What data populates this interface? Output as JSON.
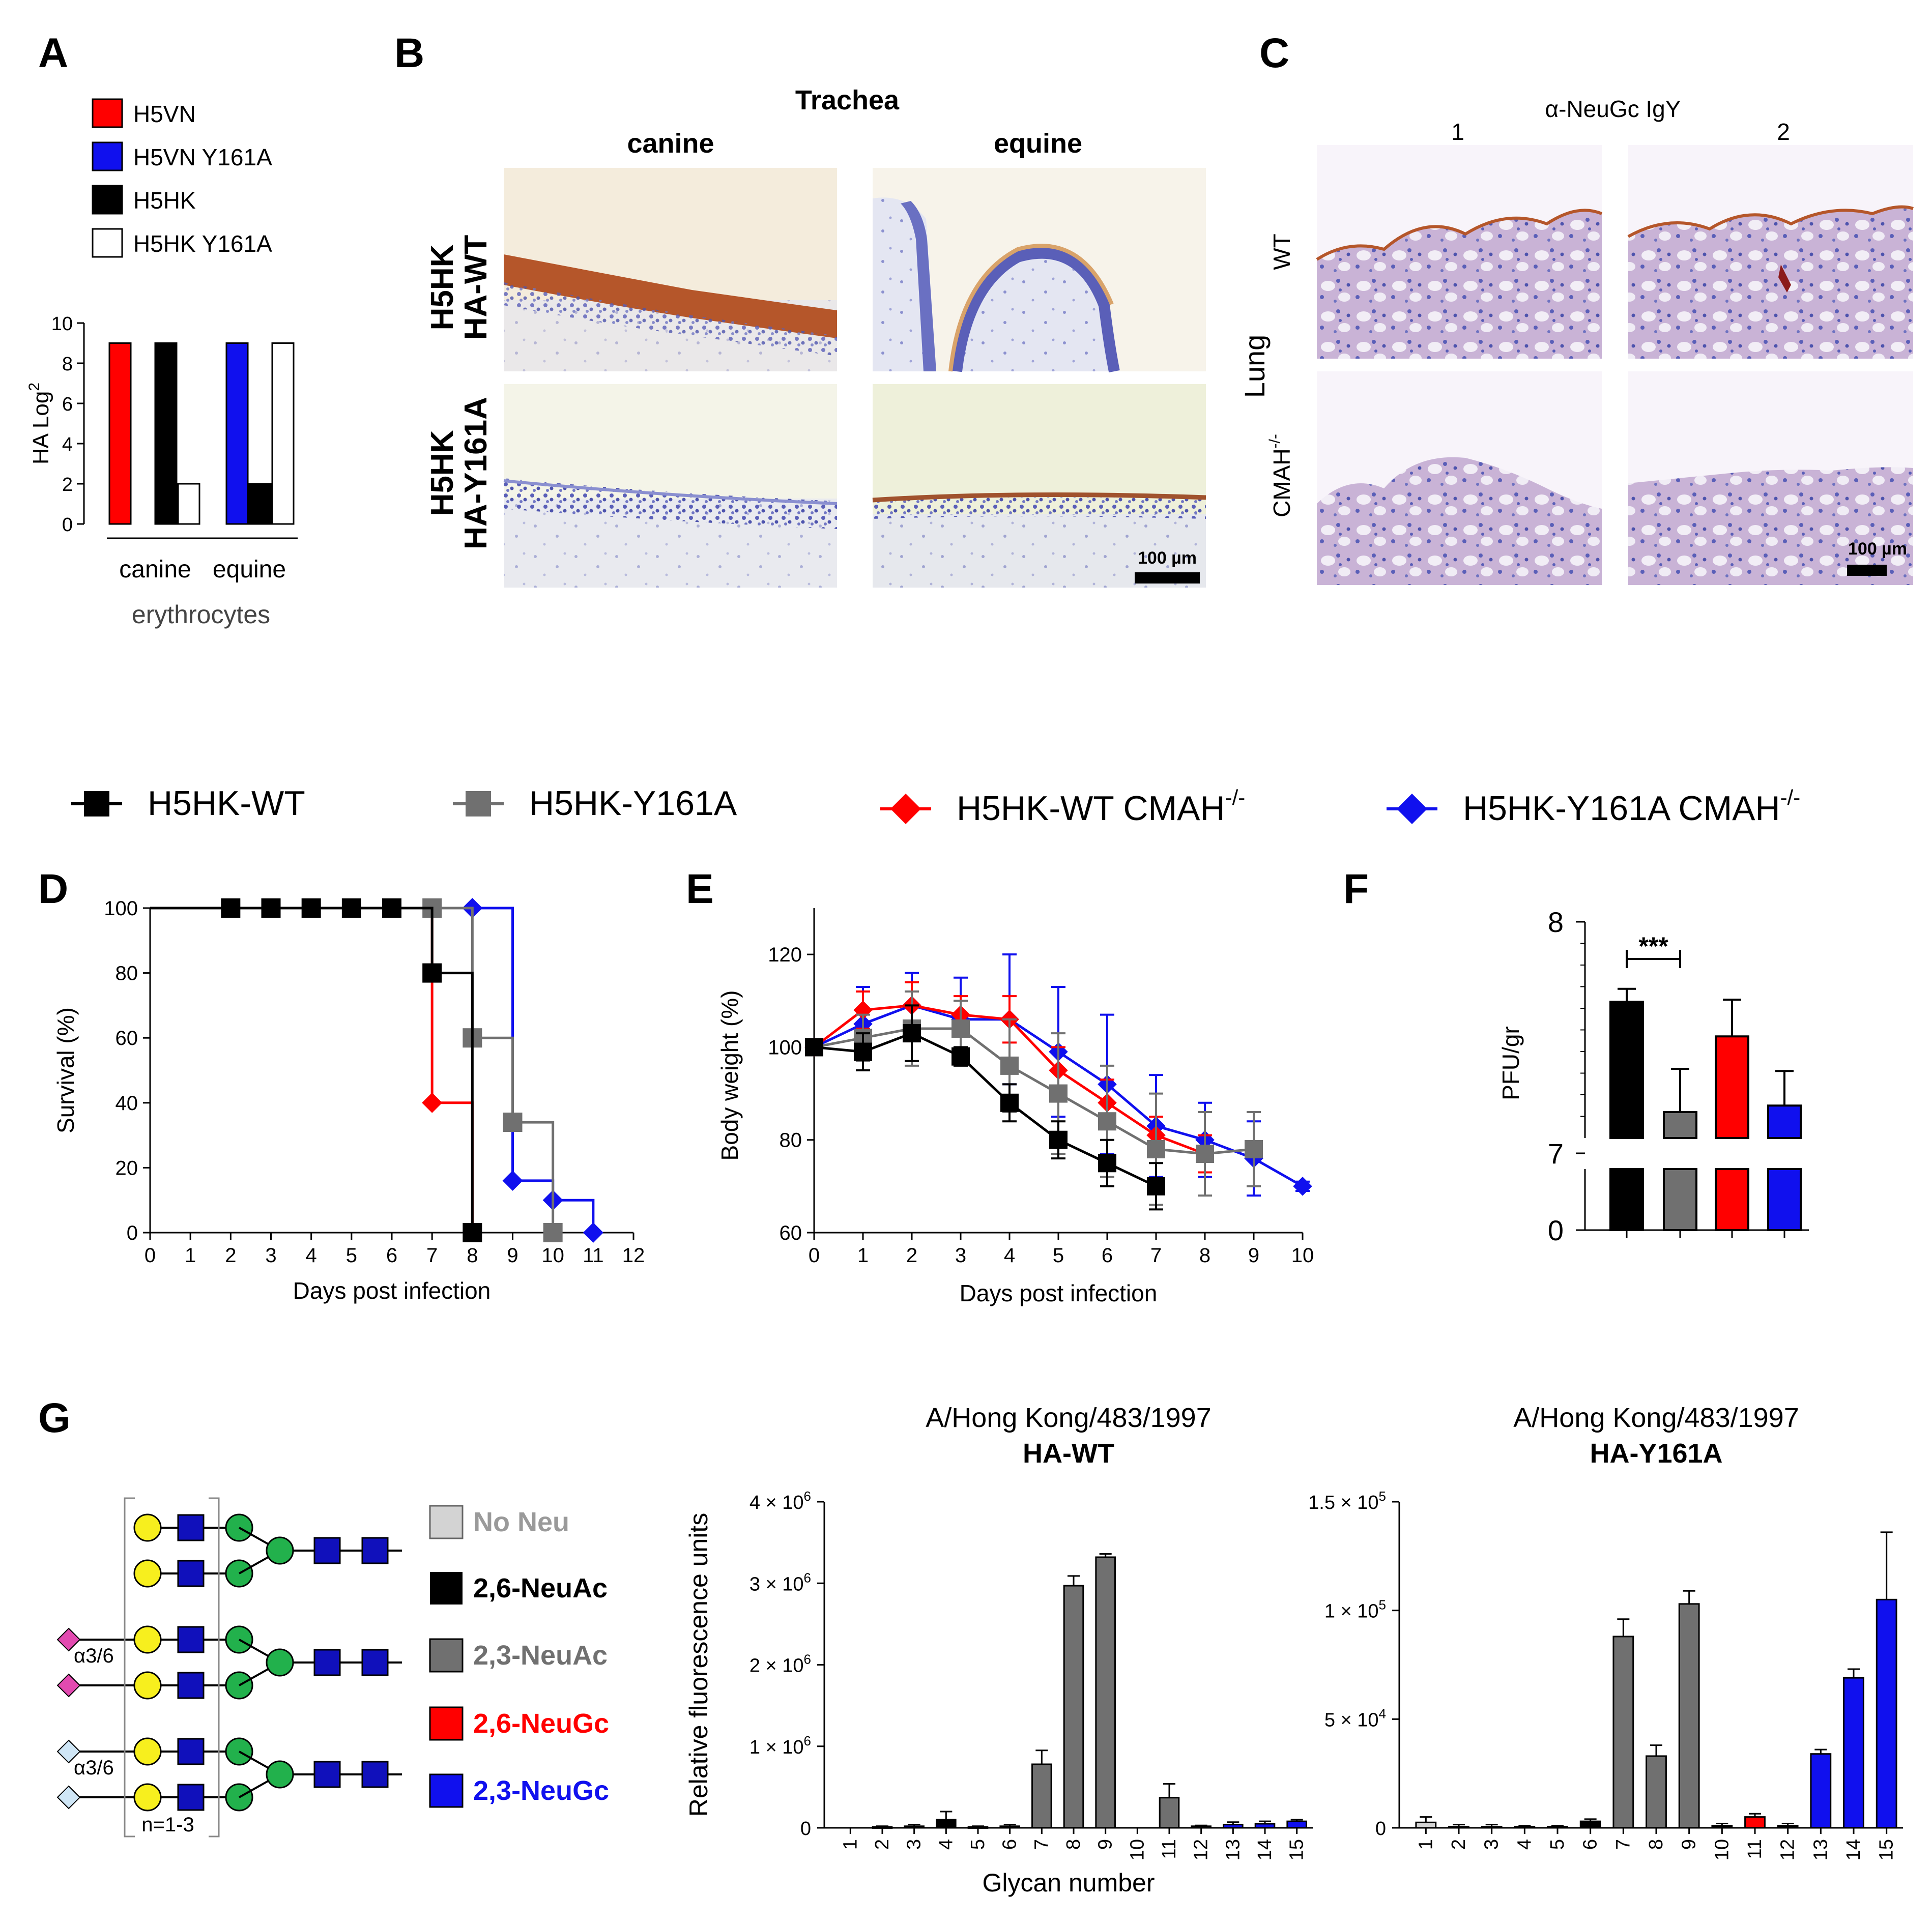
{
  "panel_letters": {
    "A": "A",
    "B": "B",
    "C": "C",
    "D": "D",
    "E": "E",
    "F": "F",
    "G": "G"
  },
  "colors": {
    "red": "#ff0000",
    "blue": "#1010ee",
    "black": "#000000",
    "gray": "#707070",
    "lightgray": "#d3d3d3",
    "histo_blue": "#7a7fc8",
    "histo_brown": "#a0522d"
  },
  "panel_a": {
    "legend": [
      "H5VN",
      "H5VN Y161A",
      "H5HK",
      "H5HK Y161A"
    ],
    "xlabel": "erythrocytes",
    "groups": [
      "canine",
      "equine"
    ]
  },
  "panel_b": {
    "title": "Trachea",
    "columns": [
      "canine",
      "equine"
    ],
    "rows": [
      [
        "H5HK",
        "HA-WT"
      ],
      [
        "H5HK",
        "HA-Y161A"
      ]
    ],
    "scalebar": "100 µm"
  },
  "panel_c": {
    "title": "α-NeuGc IgY",
    "columns": [
      "1",
      "2"
    ],
    "rows": [
      "WT",
      "CMAH"
    ],
    "row_sup": "-/-",
    "organ": "Lung",
    "scalebar": "100 µm"
  },
  "legend_de": [
    {
      "label": "H5HK-WT",
      "sup": "",
      "marker": "square",
      "color": "#000000"
    },
    {
      "label": "H5HK-Y161A",
      "sup": "",
      "marker": "square",
      "color": "#707070"
    },
    {
      "label": "H5HK-WT CMAH",
      "sup": "-/-",
      "marker": "diamond",
      "color": "#ff0000"
    },
    {
      "label": "H5HK-Y161A CMAH",
      "sup": "-/-",
      "marker": "diamond",
      "color": "#1010ee"
    }
  ],
  "panel_g": {
    "legend": [
      "No Neu",
      "2,6-NeuAc",
      "2,3-NeuAc",
      "2,6-NeuGc",
      "2,3-NeuGc"
    ],
    "linkage_labels": [
      "α3/6",
      "α3/6"
    ],
    "repeat_label": "n=1-3"
  },
  "chart_data": [
    {
      "id": "A",
      "type": "bar",
      "title": "",
      "ylabel": "HA Log",
      "ylabel_sup": "2",
      "ylim": [
        0,
        10
      ],
      "yticks": [
        0,
        2,
        4,
        6,
        8,
        10
      ],
      "categories": [
        "canine",
        "equine"
      ],
      "series": [
        {
          "name": "H5VN",
          "color": "#ff0000",
          "values": [
            9,
            null
          ]
        },
        {
          "name": "H5HK",
          "color": "#000000",
          "values": [
            9,
            2
          ]
        },
        {
          "name": "H5HK Y161A",
          "color": "#ffffff",
          "values": [
            2,
            9
          ]
        },
        {
          "name": "H5VN Y161A",
          "color": "#1010ee",
          "values": [
            null,
            9
          ]
        }
      ]
    },
    {
      "id": "D",
      "type": "line",
      "subtype": "survival-step",
      "xlabel": "Days post infection",
      "ylabel": "Survival (%)",
      "xlim": [
        0,
        12
      ],
      "ylim": [
        0,
        100
      ],
      "xticks": [
        0,
        1,
        2,
        3,
        4,
        5,
        6,
        7,
        8,
        9,
        10,
        11,
        12
      ],
      "yticks": [
        0,
        20,
        40,
        60,
        80,
        100
      ],
      "series": [
        {
          "name": "H5HK-WT",
          "color": "#000000",
          "marker": "square",
          "x": [
            0,
            7,
            8
          ],
          "y": [
            100,
            80,
            0
          ],
          "marker_x": [
            2,
            3,
            4,
            5,
            6,
            7,
            8
          ],
          "marker_y": [
            100,
            100,
            100,
            100,
            100,
            80,
            0
          ]
        },
        {
          "name": "H5HK-Y161A",
          "color": "#707070",
          "marker": "square",
          "x": [
            0,
            8,
            9,
            10
          ],
          "y": [
            100,
            60,
            34,
            0
          ],
          "marker_x": [
            7,
            8,
            9,
            10
          ],
          "marker_y": [
            100,
            60,
            34,
            0
          ]
        },
        {
          "name": "H5HK-WT CMAH-/-",
          "color": "#ff0000",
          "marker": "diamond",
          "x": [
            0,
            7,
            8
          ],
          "y": [
            100,
            40,
            0
          ],
          "marker_x": [
            7
          ],
          "marker_y": [
            40
          ]
        },
        {
          "name": "H5HK-Y161A CMAH-/-",
          "color": "#1010ee",
          "marker": "diamond",
          "x": [
            0,
            9,
            10,
            11
          ],
          "y": [
            100,
            16,
            10,
            0
          ],
          "marker_x": [
            8,
            9,
            10,
            11
          ],
          "marker_y": [
            100,
            16,
            10,
            0
          ]
        }
      ]
    },
    {
      "id": "E",
      "type": "line",
      "xlabel": "Days post infection",
      "ylabel": "Body weight (%)",
      "xlim": [
        0,
        10
      ],
      "ylim": [
        60,
        130
      ],
      "xticks": [
        0,
        1,
        2,
        3,
        4,
        5,
        6,
        7,
        8,
        9,
        10
      ],
      "yticks": [
        60,
        80,
        100,
        120
      ],
      "series": [
        {
          "name": "H5HK-WT",
          "color": "#000000",
          "marker": "square",
          "x": [
            0,
            1,
            2,
            3,
            4,
            5,
            6,
            7
          ],
          "y": [
            100,
            99,
            103,
            98,
            88,
            80,
            75,
            70
          ],
          "err": [
            1,
            4,
            6,
            2,
            4,
            4,
            5,
            5
          ]
        },
        {
          "name": "H5HK-Y161A",
          "color": "#707070",
          "marker": "square",
          "x": [
            0,
            1,
            2,
            3,
            4,
            5,
            6,
            7,
            8,
            9
          ],
          "y": [
            100,
            102,
            104,
            104,
            96,
            90,
            84,
            78,
            77,
            78
          ],
          "err": [
            1,
            5,
            8,
            6,
            10,
            13,
            12,
            12,
            9,
            8
          ]
        },
        {
          "name": "H5HK-WT CMAH-/-",
          "color": "#ff0000",
          "marker": "diamond",
          "x": [
            0,
            1,
            2,
            3,
            4,
            5,
            6,
            7,
            8
          ],
          "y": [
            100,
            108,
            109,
            107,
            106,
            95,
            88,
            81,
            77
          ],
          "err": [
            1,
            4,
            5,
            4,
            5,
            5,
            5,
            4,
            4
          ]
        },
        {
          "name": "H5HK-Y161A CMAH-/-",
          "color": "#1010ee",
          "marker": "diamond",
          "x": [
            0,
            1,
            2,
            3,
            4,
            5,
            6,
            7,
            8,
            9,
            10
          ],
          "y": [
            100,
            105,
            109,
            106,
            106,
            99,
            92,
            83,
            80,
            76,
            70
          ],
          "err": [
            1,
            8,
            7,
            9,
            14,
            14,
            15,
            11,
            8,
            8,
            1
          ]
        }
      ]
    },
    {
      "id": "F",
      "type": "bar",
      "ylabel": "PFU/gr",
      "axis_break": true,
      "yticks": [
        0,
        7,
        8
      ],
      "upper_range": [
        7,
        8
      ],
      "categories": [
        "H5HK-WT",
        "H5HK-Y161A",
        "H5HK-WT CMAH-/-",
        "H5HK-Y161A CMAH-/-"
      ],
      "values": [
        7.63,
        7.12,
        7.47,
        7.15
      ],
      "err": [
        0.06,
        0.2,
        0.17,
        0.16
      ],
      "colors": [
        "#000000",
        "#707070",
        "#ff0000",
        "#1010ee"
      ],
      "annotation": {
        "text": "***",
        "between": [
          0,
          1
        ]
      }
    },
    {
      "id": "G-WT",
      "type": "bar",
      "title": "A/Hong Kong/483/1997",
      "subtitle": "HA-WT",
      "xlabel": "Glycan number",
      "ylabel": "Relative fluorescence units",
      "ylim": [
        0,
        4000000
      ],
      "yticks": [
        0,
        1000000,
        2000000,
        3000000,
        4000000
      ],
      "ytick_labels": [
        [
          "0",
          ""
        ],
        [
          "1 × 10",
          "6"
        ],
        [
          "2 × 10",
          "6"
        ],
        [
          "3 × 10",
          "6"
        ],
        [
          "4 × 10",
          "6"
        ]
      ],
      "categories": [
        "1",
        "2",
        "3",
        "4",
        "5",
        "6",
        "7",
        "8",
        "9",
        "10",
        "11",
        "12",
        "13",
        "14",
        "15"
      ],
      "values": [
        0,
        10000,
        20000,
        100000,
        10000,
        20000,
        780000,
        2970000,
        3320000,
        0,
        370000,
        20000,
        40000,
        50000,
        80000
      ],
      "err": [
        0,
        10000,
        20000,
        100000,
        10000,
        20000,
        170000,
        120000,
        40000,
        0,
        170000,
        10000,
        30000,
        30000,
        20000
      ],
      "colors": [
        "#d3d3d3",
        "#000000",
        "#000000",
        "#000000",
        "#000000",
        "#000000",
        "#707070",
        "#707070",
        "#707070",
        "#ff0000",
        "#707070",
        "#707070",
        "#1010ee",
        "#1010ee",
        "#1010ee"
      ]
    },
    {
      "id": "G-Y161A",
      "type": "bar",
      "title": "A/Hong Kong/483/1997",
      "subtitle": "HA-Y161A",
      "xlabel": "",
      "ylabel": "",
      "ylim": [
        0,
        150000
      ],
      "yticks": [
        0,
        50000,
        100000,
        150000
      ],
      "ytick_labels": [
        [
          "0",
          ""
        ],
        [
          "5 × 10",
          "4"
        ],
        [
          "1 × 10",
          "5"
        ],
        [
          "1.5 × 10",
          "5"
        ]
      ],
      "categories": [
        "1",
        "2",
        "3",
        "4",
        "5",
        "6",
        "7",
        "8",
        "9",
        "10",
        "11",
        "12",
        "13",
        "14",
        "15"
      ],
      "values": [
        2500,
        500,
        500,
        500,
        500,
        3000,
        88000,
        33000,
        103000,
        1000,
        5000,
        1000,
        34000,
        69000,
        105000
      ],
      "err": [
        2500,
        1000,
        1000,
        500,
        500,
        1000,
        8000,
        5000,
        6000,
        1000,
        1500,
        1000,
        2000,
        4000,
        31000
      ],
      "colors": [
        "#d3d3d3",
        "#000000",
        "#000000",
        "#000000",
        "#000000",
        "#000000",
        "#707070",
        "#707070",
        "#707070",
        "#000000",
        "#ff0000",
        "#000000",
        "#1010ee",
        "#1010ee",
        "#1010ee"
      ]
    }
  ]
}
